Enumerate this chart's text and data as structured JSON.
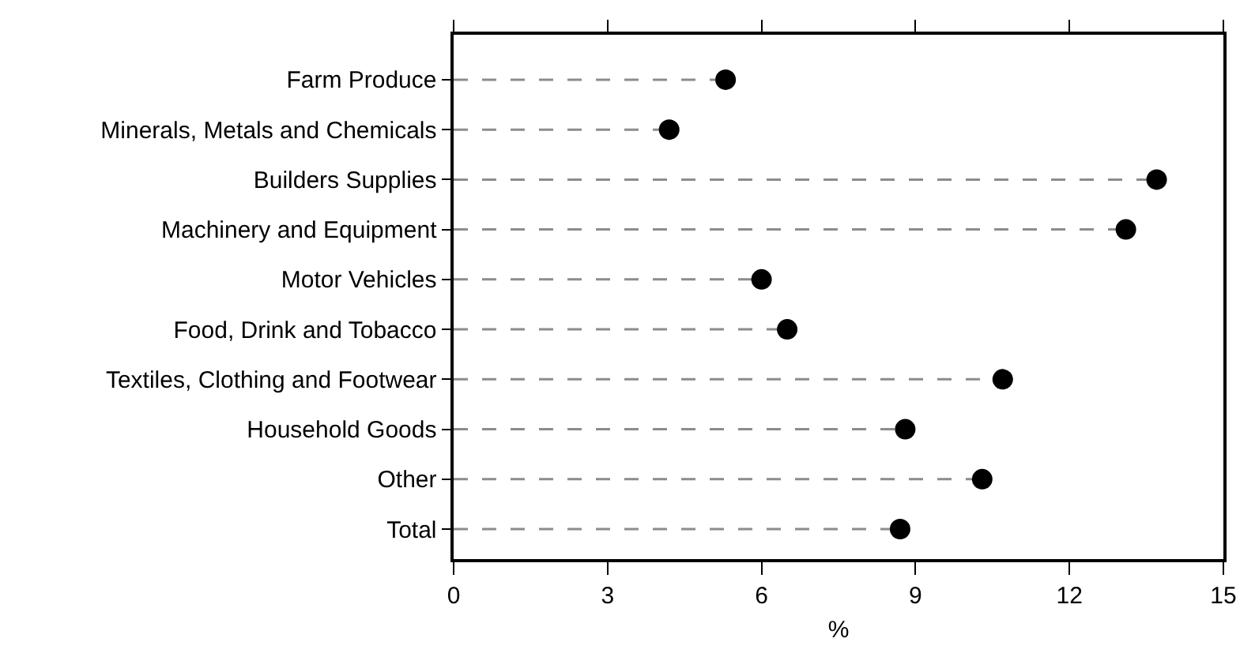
{
  "chart_data": {
    "type": "lollipop",
    "categories": [
      "Farm Produce",
      "Minerals, Metals and Chemicals",
      "Builders Supplies",
      "Machinery and Equipment",
      "Motor Vehicles",
      "Food, Drink and Tobacco",
      "Textiles, Clothing and Footwear",
      "Household Goods",
      "Other",
      "Total"
    ],
    "values": [
      5.3,
      4.2,
      13.7,
      13.1,
      6.0,
      6.5,
      10.7,
      8.8,
      10.3,
      8.7
    ],
    "color": "#000000",
    "orientation": "horizontal",
    "xlabel": "%",
    "xlim": [
      0,
      15
    ],
    "xticks": [
      0,
      3,
      6,
      9,
      12,
      15
    ],
    "marker": "circle",
    "line_style": "dashed"
  }
}
